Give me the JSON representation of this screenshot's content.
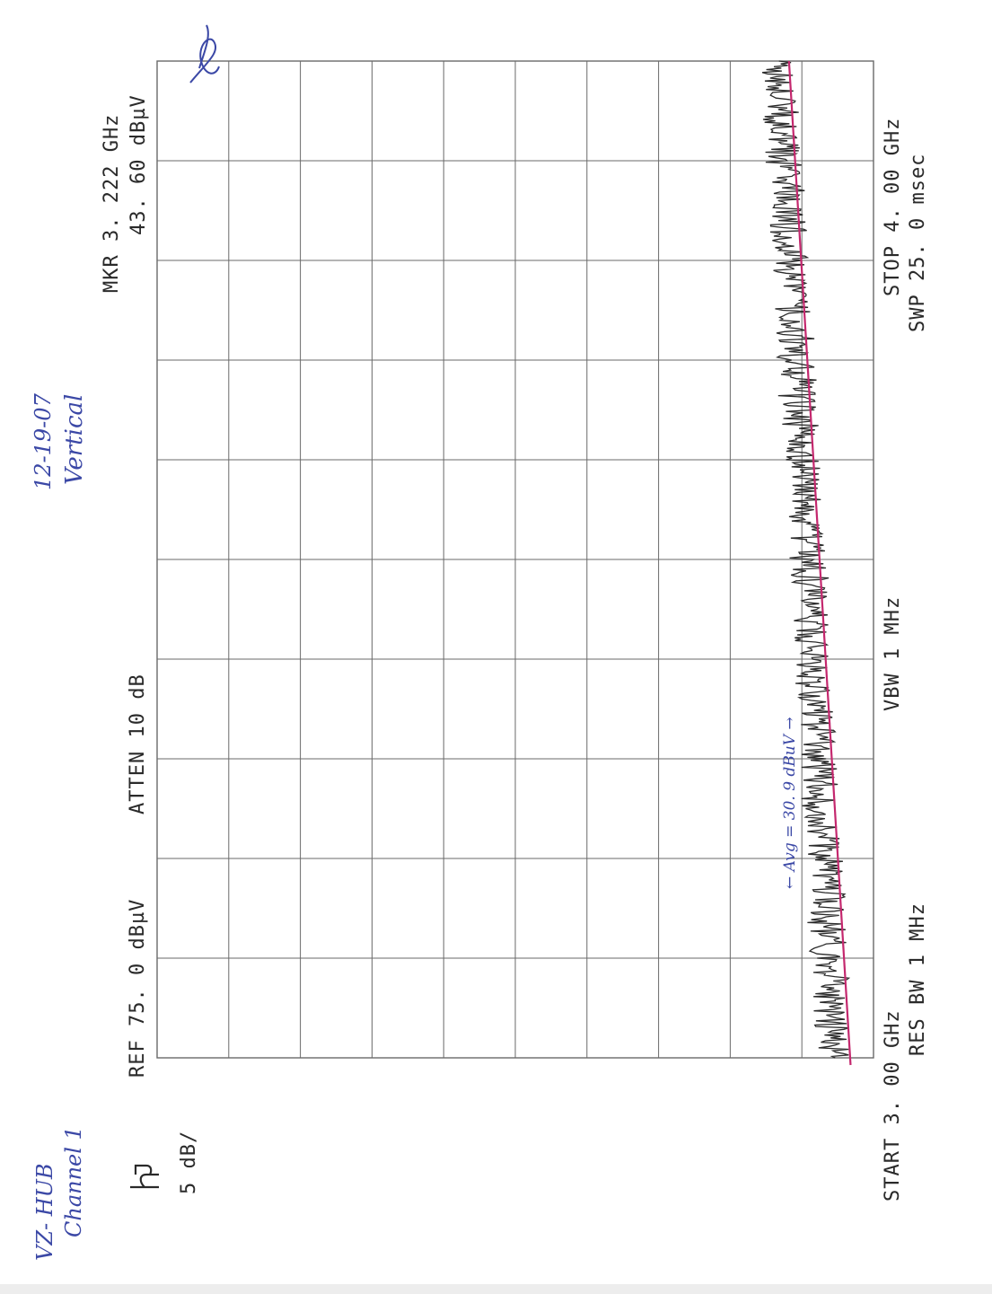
{
  "header": {
    "marker_freq": "MKR 3. 222 GHz",
    "marker_level": "43. 60 dBµV",
    "ref_level": "REF  75. 0 dBµV",
    "attenuation": "ATTEN 10 dB",
    "scale": "5 dB/"
  },
  "footer": {
    "start": "START 3. 00 GHz",
    "stop": "STOP 4. 00 GHz",
    "res_bw": "RES BW 1 MHz",
    "vbw": "VBW 1 MHz",
    "sweep": "SWP 25. 0 msec"
  },
  "annotations": {
    "device": "VZ- HUB",
    "channel": "Channel 1",
    "date": "12-19-07",
    "polarization": "Vertical",
    "average_note": "← Avg = 30. 9 dBuV →",
    "initials": "ℓℓ"
  },
  "colors": {
    "trace": "#2b2b2b",
    "limit_line": "#c4286e",
    "grid": "#6a6a6a",
    "annotation_ink": "#3b48a6"
  },
  "chart_data": {
    "type": "line",
    "title": "",
    "xlabel": "",
    "ylabel": "",
    "xlim": [
      3.0,
      4.0
    ],
    "ylim": [
      25,
      75
    ],
    "grid": true,
    "x_divisions": 10,
    "y_divisions": 10,
    "series": [
      {
        "name": "",
        "x": [
          3.0,
          3.02,
          3.04,
          3.06,
          3.08,
          3.1,
          3.12,
          3.14,
          3.16,
          3.18,
          3.2,
          3.22,
          3.24,
          3.26,
          3.28,
          3.3,
          3.32,
          3.34,
          3.36,
          3.38,
          3.4,
          3.42,
          3.44,
          3.46,
          3.48,
          3.5,
          3.52,
          3.54,
          3.56,
          3.58,
          3.6,
          3.62,
          3.64,
          3.66,
          3.68,
          3.7,
          3.72,
          3.74,
          3.76,
          3.78,
          3.8,
          3.82,
          3.84,
          3.86,
          3.88,
          3.9,
          3.92,
          3.94,
          3.96,
          3.98,
          4.0
        ],
        "y": [
          27.7,
          28.0,
          27.8,
          28.1,
          27.9,
          28.3,
          28.1,
          28.4,
          28.2,
          28.5,
          28.4,
          28.6,
          28.5,
          28.8,
          28.6,
          29.0,
          28.8,
          29.1,
          29.0,
          29.3,
          29.1,
          29.4,
          29.3,
          29.6,
          29.4,
          29.7,
          29.6,
          29.9,
          29.7,
          30.1,
          29.9,
          30.2,
          30.1,
          30.4,
          30.2,
          30.5,
          30.4,
          30.7,
          30.5,
          30.9,
          30.7,
          31.0,
          30.9,
          31.2,
          31.0,
          31.4,
          31.2,
          31.5,
          31.4,
          31.7,
          31.6
        ]
      },
      {
        "name": "",
        "x": [
          3.0,
          4.0
        ],
        "y": [
          26.6,
          30.9
        ]
      }
    ]
  }
}
